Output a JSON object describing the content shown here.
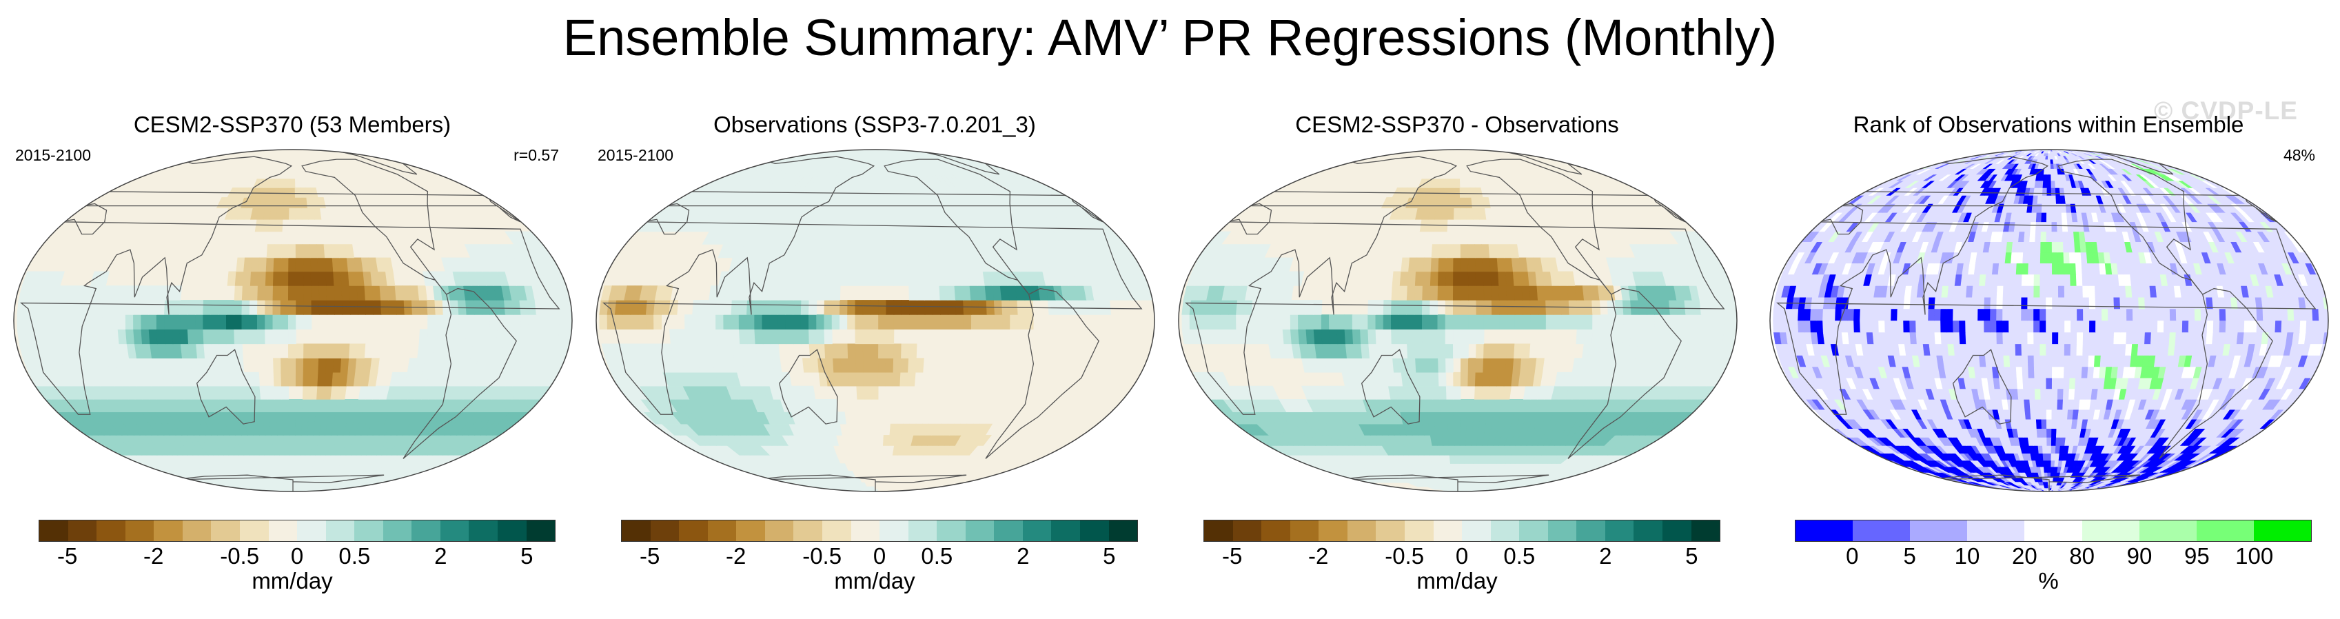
{
  "title": "Ensemble Summary: AMV’ PR Regressions (Monthly)",
  "watermark": "© CVDP-LE",
  "colors": {
    "brbg": [
      "#543005",
      "#6e400b",
      "#8c5610",
      "#a5701f",
      "#c2923e",
      "#d4b06b",
      "#e3ca93",
      "#f0e2bd",
      "#f5f0e2",
      "#e4f1ee",
      "#c4e7e0",
      "#9ad6ca",
      "#70c0b3",
      "#47a599",
      "#248a7f",
      "#0d6e63",
      "#01564c",
      "#003c30"
    ],
    "rank": [
      "#0000ff",
      "#6666ff",
      "#aaaaff",
      "#e0e0ff",
      "#ffffff",
      "#ddffdd",
      "#aaffaa",
      "#77ff77",
      "#00ee00"
    ]
  },
  "chart_data": [
    {
      "type": "heatmap",
      "title": "CESM2-SSP370 (53 Members)",
      "left_label": "2015-2100",
      "right_label": "r=0.57",
      "colorbar_label": "mm/day",
      "colorbar_ticks": [
        "-5",
        "-2",
        "-0.5",
        "0",
        "0.5",
        "2",
        "5"
      ],
      "colorbar_levels": [
        -5,
        -4,
        -3,
        -2,
        -1.5,
        -1,
        -0.5,
        -0.25,
        0,
        0.25,
        0.5,
        1,
        1.5,
        2,
        3,
        4,
        5
      ]
    },
    {
      "type": "heatmap",
      "title": "Observations (SSP3-7.0.201_3)",
      "left_label": "2015-2100",
      "right_label": "",
      "colorbar_label": "mm/day",
      "colorbar_ticks": [
        "-5",
        "-2",
        "-0.5",
        "0",
        "0.5",
        "2",
        "5"
      ],
      "colorbar_levels": [
        -5,
        -4,
        -3,
        -2,
        -1.5,
        -1,
        -0.5,
        -0.25,
        0,
        0.25,
        0.5,
        1,
        1.5,
        2,
        3,
        4,
        5
      ]
    },
    {
      "type": "heatmap",
      "title": "CESM2-SSP370 - Observations",
      "left_label": "",
      "right_label": "",
      "colorbar_label": "mm/day",
      "colorbar_ticks": [
        "-5",
        "-2",
        "-0.5",
        "0",
        "0.5",
        "2",
        "5"
      ],
      "colorbar_levels": [
        -5,
        -4,
        -3,
        -2,
        -1.5,
        -1,
        -0.5,
        -0.25,
        0,
        0.25,
        0.5,
        1,
        1.5,
        2,
        3,
        4,
        5
      ]
    },
    {
      "type": "heatmap",
      "title": "Rank of Observations within Ensemble",
      "left_label": "",
      "right_label": "48%",
      "colorbar_label": "%",
      "colorbar_ticks": [
        "0",
        "5",
        "10",
        "20",
        "80",
        "90",
        "95",
        "100"
      ],
      "colorbar_levels": [
        0,
        5,
        10,
        20,
        80,
        90,
        95,
        100
      ]
    }
  ]
}
